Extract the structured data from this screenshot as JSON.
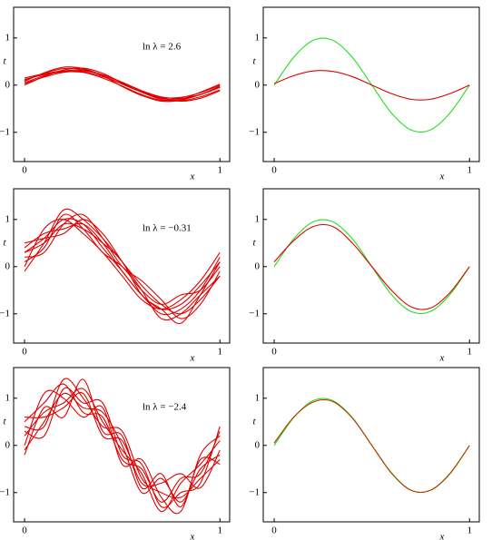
{
  "chart_data": [
    {
      "type": "line",
      "xlabel": "x",
      "ylabel": "t",
      "annotation": "ln λ = 2.6",
      "x": [
        0,
        0.1,
        0.2,
        0.3,
        0.4,
        0.5,
        0.6,
        0.7,
        0.8,
        0.9,
        1
      ],
      "xlim": [
        -0.056,
        1.05
      ],
      "ylim": [
        -1.62,
        1.65
      ],
      "xticks": [
        0,
        1
      ],
      "yticks": [
        {
          "value": -1,
          "label": "−1"
        },
        0,
        1
      ],
      "series": [
        {
          "color": "#e00000",
          "values": [
            0.1,
            0.25,
            0.35,
            0.33,
            0.2,
            0.02,
            -0.15,
            -0.28,
            -0.3,
            -0.2,
            -0.02
          ]
        },
        {
          "color": "#e00000",
          "values": [
            0.05,
            0.2,
            0.3,
            0.32,
            0.22,
            0.05,
            -0.15,
            -0.3,
            -0.33,
            -0.25,
            -0.1
          ]
        },
        {
          "color": "#e00000",
          "values": [
            0.12,
            0.22,
            0.28,
            0.27,
            0.15,
            -0.02,
            -0.2,
            -0.32,
            -0.3,
            -0.15,
            0.02
          ]
        },
        {
          "color": "#e00000",
          "values": [
            0.0,
            0.18,
            0.32,
            0.36,
            0.25,
            0.05,
            -0.12,
            -0.25,
            -0.28,
            -0.2,
            -0.05
          ]
        },
        {
          "color": "#e00000",
          "values": [
            0.08,
            0.26,
            0.38,
            0.35,
            0.2,
            -0.03,
            -0.22,
            -0.34,
            -0.32,
            -0.2,
            -0.04
          ]
        },
        {
          "color": "#e00000",
          "values": [
            0.15,
            0.24,
            0.3,
            0.28,
            0.18,
            0.03,
            -0.14,
            -0.26,
            -0.26,
            -0.16,
            0.0
          ]
        },
        {
          "color": "#e00000",
          "values": [
            0.03,
            0.17,
            0.27,
            0.3,
            0.22,
            0.06,
            -0.12,
            -0.27,
            -0.34,
            -0.28,
            -0.12
          ]
        }
      ]
    },
    {
      "type": "line",
      "x": [
        0,
        0.1,
        0.2,
        0.3,
        0.4,
        0.5,
        0.6,
        0.7,
        0.8,
        0.9,
        1
      ],
      "xlabel": "x",
      "ylabel": "t",
      "xlim": [
        -0.056,
        1.05
      ],
      "ylim": [
        -1.62,
        1.65
      ],
      "xticks": [
        0,
        1
      ],
      "yticks": [
        {
          "value": -1,
          "label": "−1"
        },
        0,
        1
      ],
      "series": [
        {
          "color": "#22e022",
          "values": [
            0,
            0.59,
            0.95,
            0.95,
            0.59,
            0,
            -0.59,
            -0.95,
            -0.95,
            -0.59,
            0
          ]
        },
        {
          "color": "#e00000",
          "values": [
            0.03,
            0.2,
            0.3,
            0.29,
            0.18,
            0,
            -0.18,
            -0.3,
            -0.3,
            -0.18,
            0
          ]
        }
      ]
    },
    {
      "type": "line",
      "xlabel": "x",
      "ylabel": "t",
      "annotation": "ln λ = −0.31",
      "x": [
        0,
        0.1,
        0.2,
        0.3,
        0.4,
        0.5,
        0.6,
        0.7,
        0.8,
        0.9,
        1
      ],
      "xlim": [
        -0.056,
        1.05
      ],
      "ylim": [
        -1.62,
        1.65
      ],
      "xticks": [
        0,
        1
      ],
      "yticks": [
        {
          "value": -1,
          "label": "−1"
        },
        0,
        1
      ],
      "series": [
        {
          "color": "#e00000",
          "values": [
            0.3,
            0.6,
            1.0,
            0.9,
            0.4,
            -0.1,
            -0.6,
            -0.9,
            -0.8,
            -0.4,
            0.1
          ]
        },
        {
          "color": "#e00000",
          "values": [
            -0.1,
            0.5,
            1.2,
            1.0,
            0.6,
            0.1,
            -0.4,
            -0.8,
            -1.0,
            -0.7,
            -0.2
          ]
        },
        {
          "color": "#e00000",
          "values": [
            0.4,
            0.7,
            0.8,
            0.9,
            0.5,
            -0.1,
            -0.6,
            -1.0,
            -0.9,
            -0.5,
            0.2
          ]
        },
        {
          "color": "#e00000",
          "values": [
            0.2,
            0.3,
            0.9,
            1.1,
            0.6,
            0.0,
            -0.3,
            -0.7,
            -1.1,
            -0.8,
            -0.1
          ]
        },
        {
          "color": "#e00000",
          "values": [
            0.0,
            0.8,
            1.0,
            0.7,
            0.3,
            -0.2,
            -0.7,
            -0.9,
            -0.7,
            -0.3,
            0.3
          ]
        },
        {
          "color": "#e00000",
          "values": [
            0.5,
            0.6,
            0.7,
            1.0,
            0.7,
            0.1,
            -0.5,
            -1.1,
            -1.0,
            -0.6,
            -0.2
          ]
        },
        {
          "color": "#e00000",
          "values": [
            0.1,
            0.4,
            1.1,
            0.8,
            0.3,
            0.0,
            -0.5,
            -0.8,
            -0.6,
            -0.5,
            0.0
          ]
        },
        {
          "color": "#e00000",
          "values": [
            0.3,
            0.5,
            0.9,
            0.8,
            0.5,
            0.1,
            -0.6,
            -0.9,
            -1.2,
            -0.6,
            0.1
          ]
        }
      ]
    },
    {
      "type": "line",
      "x": [
        0,
        0.1,
        0.2,
        0.3,
        0.4,
        0.5,
        0.6,
        0.7,
        0.8,
        0.9,
        1
      ],
      "xlabel": "x",
      "ylabel": "t",
      "xlim": [
        -0.056,
        1.05
      ],
      "ylim": [
        -1.62,
        1.65
      ],
      "xticks": [
        0,
        1
      ],
      "yticks": [
        {
          "value": -1,
          "label": "−1"
        },
        0,
        1
      ],
      "series": [
        {
          "color": "#22e022",
          "values": [
            0,
            0.59,
            0.95,
            0.95,
            0.59,
            0,
            -0.59,
            -0.95,
            -0.95,
            -0.59,
            0
          ]
        },
        {
          "color": "#e00000",
          "values": [
            0.1,
            0.55,
            0.85,
            0.85,
            0.5,
            0,
            -0.5,
            -0.85,
            -0.88,
            -0.55,
            0
          ]
        }
      ]
    },
    {
      "type": "line",
      "xlabel": "x",
      "ylabel": "t",
      "annotation": "ln λ = −2.4",
      "x": [
        0,
        0.1,
        0.2,
        0.3,
        0.4,
        0.5,
        0.6,
        0.7,
        0.8,
        0.9,
        1
      ],
      "xlim": [
        -0.056,
        1.05
      ],
      "ylim": [
        -1.62,
        1.65
      ],
      "xticks": [
        0,
        1
      ],
      "yticks": [
        {
          "value": -1,
          "label": "−1"
        },
        0,
        1
      ],
      "series": [
        {
          "color": "#e00000",
          "values": [
            0.5,
            0.9,
            1.3,
            0.7,
            0.6,
            -0.3,
            -0.5,
            -1.2,
            -0.7,
            -0.6,
            0.3
          ]
        },
        {
          "color": "#e00000",
          "values": [
            -0.2,
            0.8,
            0.6,
            1.4,
            0.3,
            0.2,
            -0.9,
            -0.6,
            -1.3,
            -0.3,
            -0.4
          ]
        },
        {
          "color": "#e00000",
          "values": [
            0.3,
            0.2,
            1.2,
            0.9,
            0.9,
            -0.2,
            -0.4,
            -1.3,
            -1.0,
            -0.8,
            0.4
          ]
        },
        {
          "color": "#e00000",
          "values": [
            0.6,
            0.6,
            0.8,
            1.1,
            0.2,
            0.1,
            -0.8,
            -0.8,
            -0.6,
            -0.9,
            -0.1
          ]
        },
        {
          "color": "#e00000",
          "values": [
            0.0,
            1.1,
            1.0,
            0.6,
            0.8,
            -0.4,
            -0.3,
            -1.1,
            -1.4,
            -0.2,
            0.2
          ]
        },
        {
          "color": "#e00000",
          "values": [
            0.4,
            0.4,
            1.4,
            1.0,
            0.4,
            0.3,
            -0.7,
            -1.0,
            -1.1,
            -0.7,
            -0.3
          ]
        },
        {
          "color": "#e00000",
          "values": [
            0.2,
            0.7,
            0.9,
            1.2,
            0.5,
            -0.1,
            -0.6,
            -1.4,
            -0.8,
            -0.4,
            0.1
          ]
        },
        {
          "color": "#e00000",
          "values": [
            -0.1,
            0.5,
            1.1,
            0.8,
            0.7,
            0.0,
            -1.0,
            -0.7,
            -1.2,
            -0.5,
            -0.2
          ]
        }
      ]
    },
    {
      "type": "line",
      "x": [
        0,
        0.1,
        0.2,
        0.3,
        0.4,
        0.5,
        0.6,
        0.7,
        0.8,
        0.9,
        1
      ],
      "xlabel": "x",
      "ylabel": "t",
      "xlim": [
        -0.056,
        1.05
      ],
      "ylim": [
        -1.62,
        1.65
      ],
      "xticks": [
        0,
        1
      ],
      "yticks": [
        {
          "value": -1,
          "label": "−1"
        },
        0,
        1
      ],
      "series": [
        {
          "color": "#22e022",
          "values": [
            0,
            0.59,
            0.95,
            0.95,
            0.59,
            0,
            -0.59,
            -0.95,
            -0.95,
            -0.59,
            0
          ]
        },
        {
          "color": "#c03000",
          "values": [
            0.05,
            0.6,
            0.92,
            0.93,
            0.58,
            0,
            -0.58,
            -0.95,
            -0.95,
            -0.6,
            0
          ]
        }
      ]
    }
  ]
}
